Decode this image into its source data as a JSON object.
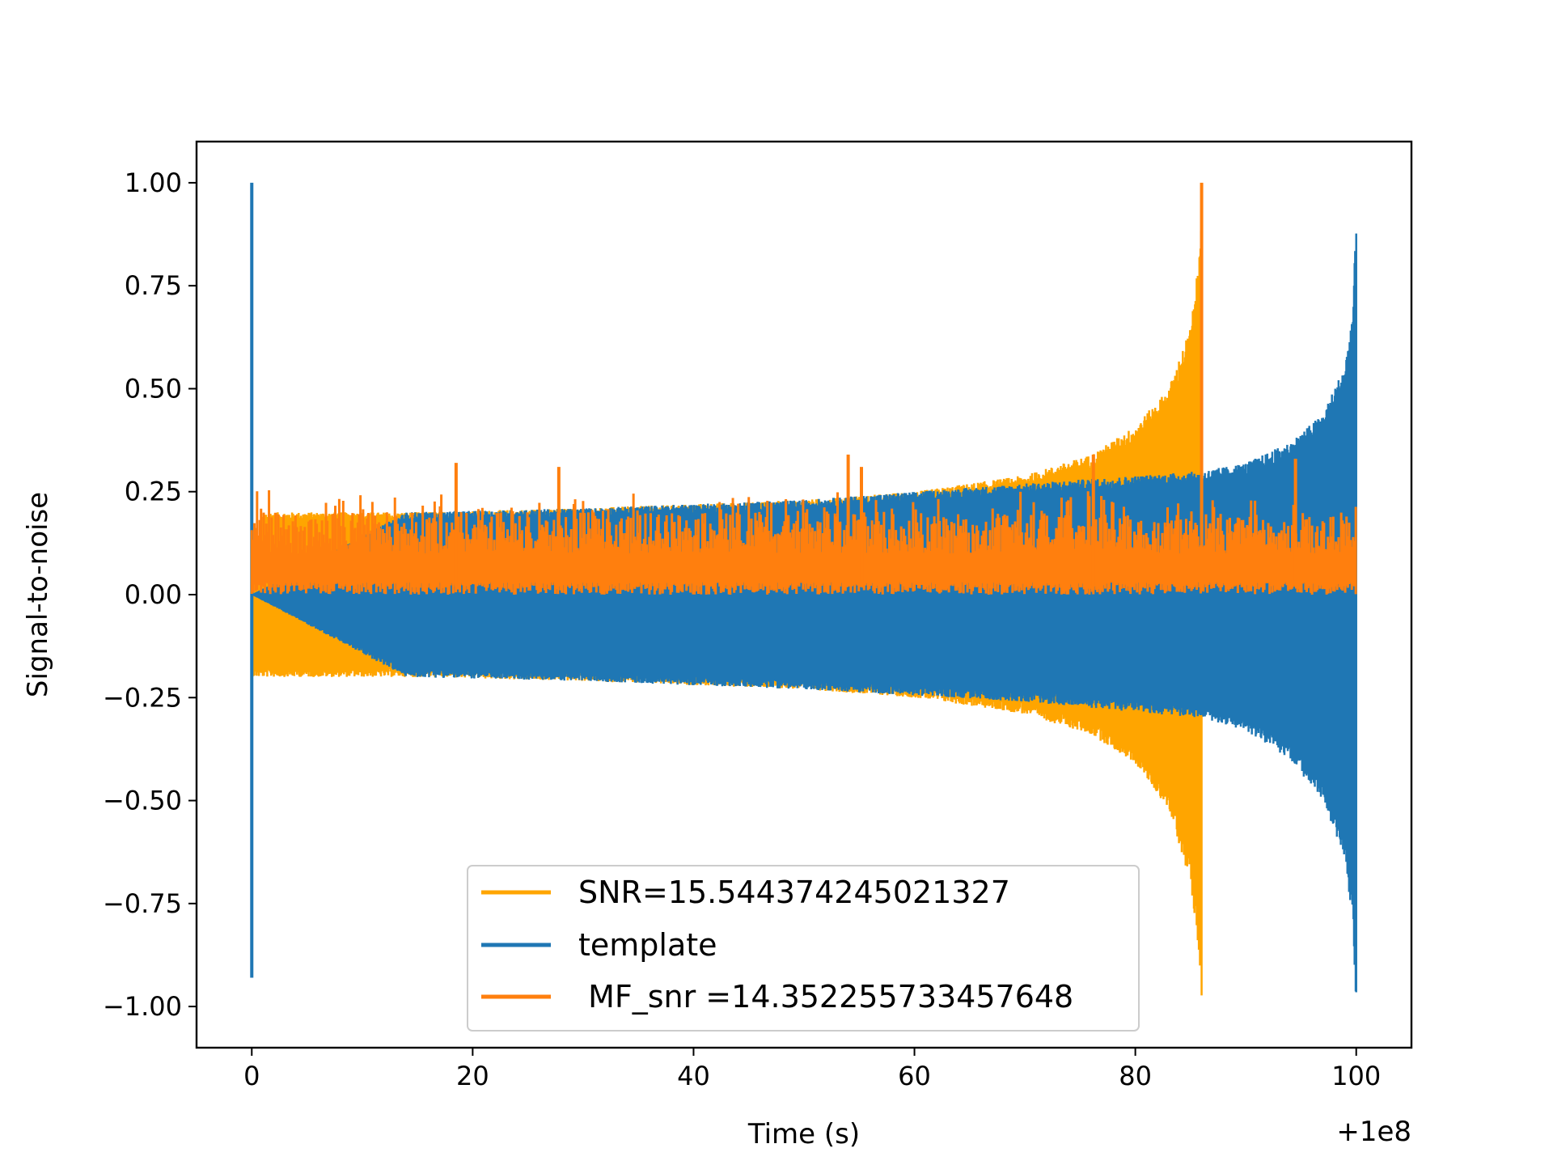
{
  "chart_data": {
    "type": "line",
    "title": "",
    "xlabel": "Time (s)",
    "ylabel": "Signal-to-noise",
    "offset_text": "+1e8",
    "xlim": [
      -5,
      105
    ],
    "ylim": [
      -1.1,
      1.1
    ],
    "x_ticks": [
      0,
      20,
      40,
      60,
      80,
      100
    ],
    "x_tick_labels": [
      "0",
      "20",
      "40",
      "60",
      "80",
      "100"
    ],
    "y_ticks": [
      1.0,
      0.75,
      0.5,
      0.25,
      0.0,
      -0.25,
      -0.5,
      -0.75,
      -1.0
    ],
    "y_tick_labels": [
      "1.00",
      "0.75",
      "0.50",
      "0.25",
      "0.00",
      "−0.25",
      "−0.50",
      "−0.75",
      "−1.00"
    ],
    "grid": false,
    "legend_position": "lower center",
    "series": [
      {
        "name": "SNR=15.544374245021327",
        "color": "#FFA500",
        "envelope": {
          "x": [
            0,
            1,
            14,
            30,
            50,
            60,
            70,
            76,
            80,
            83,
            85,
            85.7,
            86
          ],
          "upper": [
            0.01,
            0.2,
            0.2,
            0.21,
            0.23,
            0.25,
            0.29,
            0.34,
            0.41,
            0.5,
            0.65,
            0.8,
            1.0
          ],
          "lower": [
            -0.2,
            -0.2,
            -0.2,
            -0.21,
            -0.23,
            -0.25,
            -0.29,
            -0.34,
            -0.41,
            -0.52,
            -0.7,
            -0.85,
            -1.0
          ]
        }
      },
      {
        "name": "template",
        "color": "#1F77B4",
        "envelope": {
          "x": [
            0,
            14,
            30,
            50,
            70,
            86,
            90,
            94,
            97,
            99,
            99.7,
            100
          ],
          "upper": [
            0.0,
            0.2,
            0.21,
            0.23,
            0.27,
            0.3,
            0.32,
            0.37,
            0.44,
            0.56,
            0.7,
            0.91
          ],
          "lower": [
            0.0,
            -0.2,
            -0.21,
            -0.23,
            -0.26,
            -0.3,
            -0.33,
            -0.4,
            -0.5,
            -0.65,
            -0.8,
            -1.0
          ]
        },
        "spikes": [
          {
            "x": 0,
            "y_max": 1.0,
            "y_min": -0.93
          }
        ]
      },
      {
        "name": " MF_snr =14.352255733457648",
        "color": "#FF7F0E",
        "band": {
          "x": [
            0,
            100
          ],
          "low": 0.0,
          "typical_high": 0.2
        },
        "spikes": [
          {
            "x": 18.5,
            "y": 0.32
          },
          {
            "x": 27.8,
            "y": 0.31
          },
          {
            "x": 54,
            "y": 0.34
          },
          {
            "x": 55.2,
            "y": 0.31
          },
          {
            "x": 76.2,
            "y": 0.34
          },
          {
            "x": 86,
            "y": 1.0
          },
          {
            "x": 94.5,
            "y": 0.33
          }
        ]
      }
    ]
  }
}
